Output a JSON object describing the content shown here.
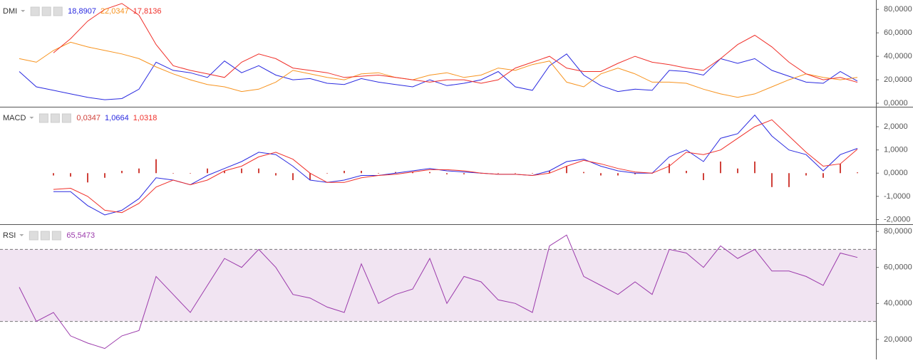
{
  "chart_data": [
    {
      "type": "line",
      "title": "DMI",
      "ylim": [
        -3,
        88
      ],
      "yticks": [
        {
          "value": 0,
          "label": "0,0000"
        },
        {
          "value": 20,
          "label": "20,0000"
        },
        {
          "value": 40,
          "label": "40,0000"
        },
        {
          "value": 60,
          "label": "60,0000"
        },
        {
          "value": 80,
          "label": "80,0000"
        }
      ],
      "series": [
        {
          "color": "#2a2ae0",
          "value_label": "18,8907",
          "values": [
            27,
            14,
            11,
            8,
            5,
            3,
            4,
            12,
            35,
            28,
            26,
            22,
            36,
            26,
            32,
            24,
            20,
            21,
            17,
            16,
            21,
            18,
            16,
            14,
            20,
            15,
            17,
            20,
            27,
            14,
            11,
            32,
            42,
            24,
            15,
            10,
            12,
            11,
            28,
            27,
            24,
            38,
            34,
            38,
            28,
            23,
            18,
            17,
            27,
            18.8907
          ]
        },
        {
          "color": "#f7931e",
          "value_label": "22,0347",
          "values": [
            38,
            35,
            45,
            52,
            48,
            45,
            42,
            38,
            31,
            25,
            20,
            16,
            14,
            10,
            12,
            18,
            28,
            25,
            22,
            20,
            25,
            26,
            22,
            20,
            24,
            26,
            22,
            24,
            30,
            28,
            33,
            36,
            18,
            14,
            25,
            30,
            25,
            18,
            18,
            17,
            12,
            8,
            5,
            8,
            14,
            20,
            25,
            22,
            20,
            22.0347
          ]
        },
        {
          "color": "#f0302a",
          "value_label": "17,8136",
          "values": [
            null,
            null,
            43,
            55,
            70,
            80,
            85,
            75,
            50,
            32,
            28,
            25,
            22,
            35,
            42,
            38,
            30,
            28,
            26,
            22,
            23,
            24,
            22,
            20,
            18,
            20,
            20,
            17,
            20,
            30,
            35,
            40,
            30,
            27,
            27,
            34,
            40,
            35,
            33,
            30,
            28,
            38,
            50,
            58,
            48,
            35,
            25,
            20,
            22,
            17.8136
          ]
        }
      ]
    },
    {
      "type": "line",
      "title": "MACD",
      "ylim": [
        -2.2,
        2.86
      ],
      "yticks": [
        {
          "value": -2,
          "label": "-2,0000"
        },
        {
          "value": -1,
          "label": "-1,0000"
        },
        {
          "value": 0,
          "label": "0,0000"
        },
        {
          "value": 1,
          "label": "1,0000"
        },
        {
          "value": 2,
          "label": "2,0000"
        }
      ],
      "series": [
        {
          "type": "bar",
          "color": "#d0413a",
          "value_label": "0,0347",
          "values": [
            null,
            null,
            -0.1,
            -0.15,
            -0.4,
            -0.2,
            0.1,
            0.2,
            0.6,
            0.0,
            0.0,
            0.2,
            0.1,
            0.2,
            0.2,
            -0.1,
            -0.3,
            -0.3,
            0.0,
            0.1,
            0.1,
            0.0,
            0.05,
            0.05,
            0.05,
            -0.05,
            -0.05,
            0.0,
            0.0,
            0.0,
            0.0,
            0.1,
            0.3,
            0.05,
            -0.1,
            -0.1,
            -0.05,
            0.0,
            0.4,
            0.1,
            -0.3,
            0.5,
            0.2,
            0.5,
            -0.6,
            -0.6,
            -0.1,
            -0.2,
            0.4,
            0.0347
          ]
        },
        {
          "color": "#2a2ae0",
          "value_label": "1,0664",
          "values": [
            null,
            null,
            -0.8,
            -0.8,
            -1.4,
            -1.8,
            -1.6,
            -1.1,
            -0.2,
            -0.3,
            -0.5,
            -0.1,
            0.2,
            0.5,
            0.9,
            0.8,
            0.3,
            -0.3,
            -0.4,
            -0.3,
            -0.1,
            -0.1,
            0.0,
            0.1,
            0.2,
            0.1,
            0.05,
            0.0,
            -0.05,
            -0.05,
            -0.1,
            0.1,
            0.5,
            0.6,
            0.3,
            0.1,
            0.0,
            0.0,
            0.7,
            1.0,
            0.5,
            1.5,
            1.7,
            2.5,
            1.6,
            1.0,
            0.8,
            0.1,
            0.8,
            1.0664
          ]
        },
        {
          "color": "#f0302a",
          "value_label": "1,0318",
          "values": [
            null,
            null,
            -0.7,
            -0.65,
            -1.0,
            -1.6,
            -1.7,
            -1.3,
            -0.6,
            -0.3,
            -0.5,
            -0.3,
            0.1,
            0.3,
            0.7,
            0.9,
            0.6,
            0.0,
            -0.4,
            -0.4,
            -0.2,
            -0.1,
            -0.05,
            0.05,
            0.15,
            0.15,
            0.1,
            0.0,
            -0.05,
            -0.05,
            -0.1,
            0.0,
            0.3,
            0.55,
            0.4,
            0.2,
            0.05,
            0.0,
            0.3,
            0.9,
            0.8,
            1.0,
            1.5,
            2.0,
            2.3,
            1.6,
            0.9,
            0.3,
            0.4,
            1.0318
          ]
        }
      ]
    },
    {
      "type": "line",
      "title": "RSI",
      "ylim": [
        8.9,
        84
      ],
      "yticks": [
        {
          "value": 20,
          "label": "20,0000"
        },
        {
          "value": 40,
          "label": "40,0000"
        },
        {
          "value": 60,
          "label": "60,0000"
        },
        {
          "value": 80,
          "label": "80,0000"
        }
      ],
      "band": [
        30,
        70
      ],
      "band_color": "#f1e4f2",
      "series": [
        {
          "color": "#9b3aab",
          "value_label": "65,5473",
          "values": [
            49,
            30,
            35,
            22,
            18,
            15,
            22,
            25,
            55,
            45,
            35,
            50,
            65,
            60,
            70,
            60,
            45,
            43,
            38,
            35,
            62,
            40,
            45,
            48,
            65,
            40,
            55,
            52,
            42,
            40,
            35,
            72,
            78,
            55,
            50,
            45,
            52,
            45,
            70,
            68,
            60,
            72,
            65,
            70,
            58,
            58,
            55,
            50,
            68,
            65.5473
          ]
        }
      ]
    }
  ]
}
